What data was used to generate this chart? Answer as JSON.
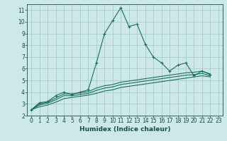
{
  "xlabel": "Humidex (Indice chaleur)",
  "background_color": "#cce8e8",
  "grid_color": "#aacccc",
  "line_color": "#1a6e5e",
  "xlim": [
    -0.5,
    23.5
  ],
  "ylim": [
    2,
    11.5
  ],
  "xticks": [
    0,
    1,
    2,
    3,
    4,
    5,
    6,
    7,
    8,
    9,
    10,
    11,
    12,
    13,
    14,
    15,
    16,
    17,
    18,
    19,
    20,
    21,
    22,
    23
  ],
  "yticks": [
    2,
    3,
    4,
    5,
    6,
    7,
    8,
    9,
    10,
    11
  ],
  "series0": [
    2.5,
    3.1,
    3.2,
    3.7,
    4.0,
    3.8,
    4.0,
    4.2,
    6.5,
    9.0,
    10.1,
    11.2,
    9.6,
    9.8,
    8.1,
    7.0,
    6.5,
    5.8,
    6.3,
    6.5,
    5.4,
    5.8,
    5.5
  ],
  "series1": [
    2.5,
    3.0,
    3.15,
    3.5,
    3.85,
    3.85,
    3.95,
    4.05,
    4.35,
    4.55,
    4.65,
    4.85,
    4.95,
    5.05,
    5.15,
    5.25,
    5.35,
    5.45,
    5.55,
    5.65,
    5.7,
    5.8,
    5.55
  ],
  "series2": [
    2.5,
    2.9,
    3.05,
    3.35,
    3.7,
    3.7,
    3.8,
    3.9,
    4.15,
    4.35,
    4.45,
    4.65,
    4.75,
    4.85,
    4.95,
    5.05,
    5.15,
    5.25,
    5.35,
    5.45,
    5.5,
    5.6,
    5.4
  ],
  "series3": [
    2.5,
    2.75,
    2.9,
    3.15,
    3.45,
    3.55,
    3.65,
    3.75,
    3.9,
    4.1,
    4.2,
    4.4,
    4.5,
    4.6,
    4.7,
    4.8,
    4.9,
    5.0,
    5.1,
    5.2,
    5.3,
    5.4,
    5.3
  ]
}
